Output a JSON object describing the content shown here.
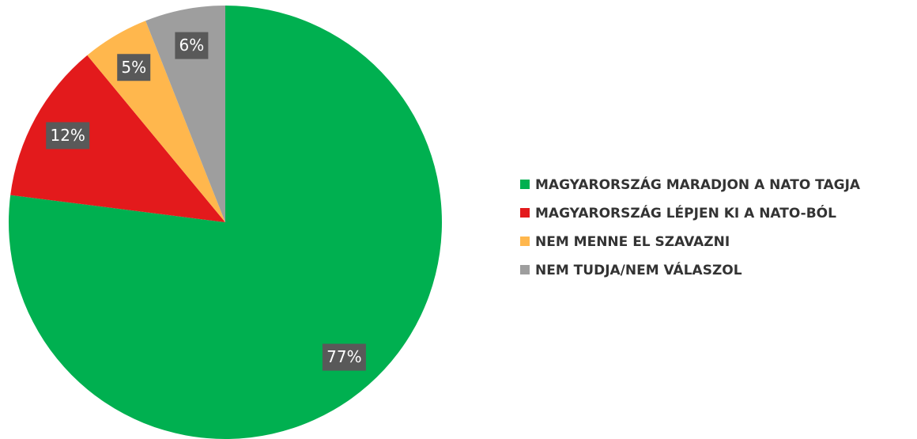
{
  "chart_data": {
    "type": "pie",
    "categories": [
      "MAGYARORSZÁG MARADJON A NATO TAGJA",
      "MAGYARORSZÁG LÉPJEN KI A NATO-BÓL",
      "NEM MENNE EL SZAVAZNI",
      "NEM TUDJA/NEM VÁLASZOL"
    ],
    "values": [
      77,
      12,
      5,
      6
    ],
    "value_labels": [
      "77%",
      "12%",
      "5%",
      "6%"
    ],
    "colors": [
      "#00b050",
      "#e31a1c",
      "#ffb74d",
      "#9e9e9e"
    ],
    "legend": "right"
  }
}
